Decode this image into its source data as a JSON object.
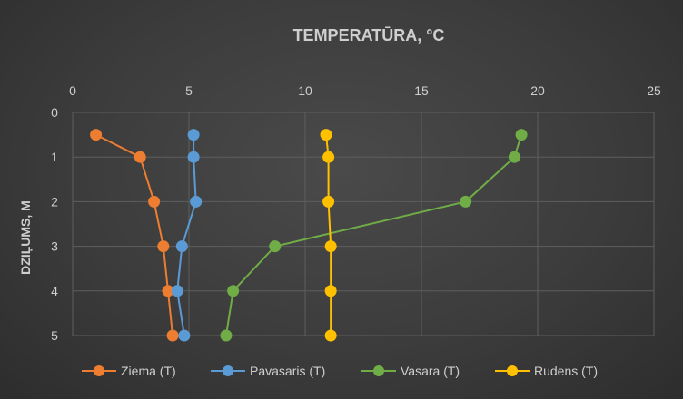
{
  "chart_data": {
    "type": "line",
    "title": "TEMPERATŪRA, °C",
    "xlabel": "",
    "ylabel": "DZIĻUMS, M",
    "xlim": [
      0,
      25
    ],
    "ylim": [
      0,
      5
    ],
    "y_reversed": true,
    "x_ticks": [
      "0",
      "5",
      "10",
      "15",
      "20",
      "25"
    ],
    "y_ticks": [
      "0",
      "1",
      "2",
      "3",
      "4",
      "5"
    ],
    "x_axis_position": "top",
    "grid": true,
    "legend_position": "bottom",
    "series": [
      {
        "name": "Ziema (T)",
        "color": "#ed7d31",
        "points": [
          [
            1.0,
            0.5
          ],
          [
            2.9,
            1.0
          ],
          [
            3.5,
            2.0
          ],
          [
            3.9,
            3.0
          ],
          [
            4.1,
            4.0
          ],
          [
            4.3,
            5.0
          ]
        ]
      },
      {
        "name": "Pavasaris (T)",
        "color": "#5b9bd5",
        "points": [
          [
            5.2,
            0.5
          ],
          [
            5.2,
            1.0
          ],
          [
            5.3,
            2.0
          ],
          [
            4.7,
            3.0
          ],
          [
            4.5,
            4.0
          ],
          [
            4.8,
            5.0
          ]
        ]
      },
      {
        "name": "Vasara (T)",
        "color": "#70ad47",
        "points": [
          [
            19.3,
            0.5
          ],
          [
            19.0,
            1.0
          ],
          [
            16.9,
            2.0
          ],
          [
            8.7,
            3.0
          ],
          [
            6.9,
            4.0
          ],
          [
            6.6,
            5.0
          ]
        ]
      },
      {
        "name": "Rudens (T)",
        "color": "#ffc000",
        "points": [
          [
            10.9,
            0.5
          ],
          [
            11.0,
            1.0
          ],
          [
            11.0,
            2.0
          ],
          [
            11.1,
            3.0
          ],
          [
            11.1,
            4.0
          ],
          [
            11.1,
            5.0
          ]
        ]
      }
    ]
  }
}
